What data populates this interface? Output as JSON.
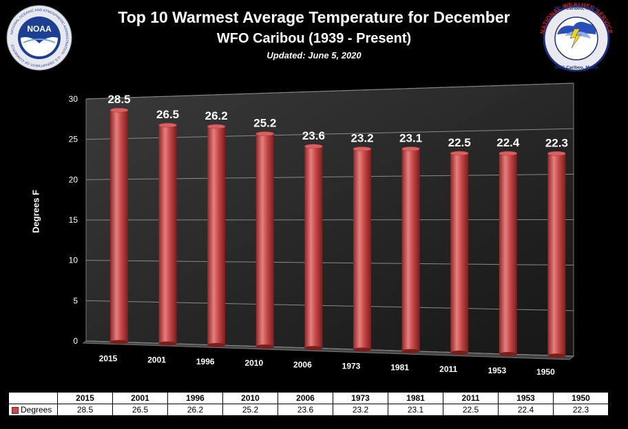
{
  "header": {
    "title": "Top 10 Warmest Average Temperature for December",
    "subtitle": "WFO Caribou (1939 - Present)",
    "updated": "Updated: June 5, 2020"
  },
  "logos": {
    "noaa": {
      "center_text": "NOAA"
    },
    "nws": {
      "top_text": "WFO Caribou, Maine",
      "ring_text": "NATIONAL WEATHER SERVICE",
      "bottom_text": "NWS Caribou, Maine"
    }
  },
  "colors": {
    "bar": "#c94a4a",
    "bar_dark": "#8e2626",
    "bar_light": "#e58080",
    "background": "#000000"
  },
  "chart_data": {
    "type": "bar",
    "categories": [
      "2015",
      "2001",
      "1996",
      "2010",
      "2006",
      "1973",
      "1981",
      "2011",
      "1953",
      "1950"
    ],
    "series": [
      {
        "name": "Degrees",
        "values": [
          28.5,
          26.5,
          26.2,
          25.2,
          23.6,
          23.2,
          23.1,
          22.5,
          22.4,
          22.3
        ]
      }
    ],
    "data_labels": [
      "28.5",
      "26.5",
      "26.2",
      "25.2",
      "23.6",
      "23.2",
      "23.1",
      "22.5",
      "22.4",
      "22.3"
    ],
    "ylabel": "Degrees F",
    "xlabel": "",
    "ylim": [
      0,
      30
    ],
    "yticks": [
      "0",
      "5",
      "10",
      "15",
      "20",
      "25",
      "30"
    ],
    "grid": true,
    "legend": "data-table-row",
    "style": "3d-cylinder"
  },
  "table": {
    "row_label": "Degrees",
    "values": [
      "28.5",
      "26.5",
      "26.2",
      "25.2",
      "23.6",
      "23.2",
      "23.1",
      "22.5",
      "22.4",
      "22.3"
    ]
  }
}
